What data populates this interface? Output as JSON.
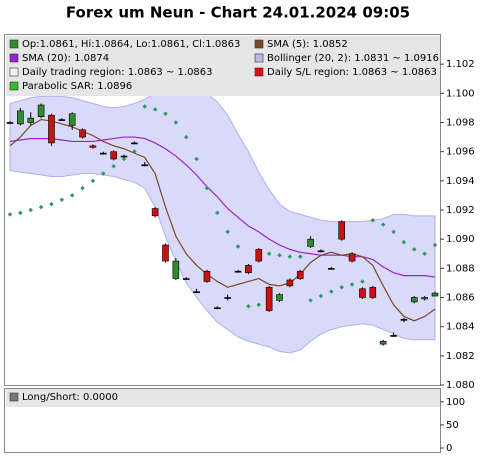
{
  "chart_data": [
    {
      "type": "candlestick",
      "title": "Forex um Neun - Chart 24.01.2024 09:05",
      "up_color": "#2e8b2e",
      "down_color": "#cc1111",
      "open": [
        1.098,
        1.0979,
        1.098,
        1.0984,
        1.0985,
        1.0982,
        1.0978,
        1.0975,
        1.0964,
        1.0959,
        1.096,
        1.0957,
        1.0966,
        1.0951,
        1.0921,
        1.0896,
        1.0873,
        1.0873,
        1.0864,
        1.0878,
        1.0853,
        1.086,
        1.0878,
        1.0882,
        1.0893,
        1.0867,
        1.0858,
        1.0872,
        1.0878,
        1.0895,
        1.0892,
        1.088,
        1.0912,
        1.089,
        1.0866,
        1.0867,
        1.0828,
        1.0834,
        1.0845,
        1.0857,
        1.0859,
        1.0861
      ],
      "high": [
        1.0981,
        1.099,
        1.0987,
        1.0993,
        1.0986,
        1.0983,
        1.0987,
        1.0976,
        1.0965,
        1.096,
        1.0961,
        1.0958,
        1.0967,
        1.0953,
        1.0922,
        1.0897,
        1.0887,
        1.0874,
        1.0866,
        1.0879,
        1.0854,
        1.0862,
        1.0879,
        1.0883,
        1.0894,
        1.0868,
        1.0863,
        1.0873,
        1.0879,
        1.0902,
        1.0893,
        1.0881,
        1.0913,
        1.0891,
        1.0867,
        1.0868,
        1.0831,
        1.0836,
        1.0846,
        1.0861,
        1.0861,
        1.0864
      ],
      "low": [
        1.0979,
        1.0978,
        1.0978,
        1.0983,
        1.0964,
        1.0981,
        1.0975,
        1.0969,
        1.0962,
        1.0958,
        1.0954,
        1.0956,
        1.0965,
        1.095,
        1.0915,
        1.0884,
        1.0872,
        1.0872,
        1.0863,
        1.087,
        1.0852,
        1.0858,
        1.0877,
        1.0876,
        1.0884,
        1.085,
        1.0857,
        1.0867,
        1.0872,
        1.0894,
        1.0891,
        1.0879,
        1.0899,
        1.0884,
        1.0859,
        1.0859,
        1.0827,
        1.0833,
        1.0843,
        1.0856,
        1.0858,
        1.0861
      ],
      "close": [
        1.098,
        1.0988,
        1.0983,
        1.0992,
        1.0966,
        1.0982,
        1.0986,
        1.097,
        1.0963,
        1.0959,
        1.0955,
        1.0957,
        1.0966,
        1.0951,
        1.0916,
        1.0885,
        1.0885,
        1.0873,
        1.0864,
        1.0871,
        1.0853,
        1.086,
        1.0878,
        1.0877,
        1.0885,
        1.0851,
        1.0862,
        1.0868,
        1.0873,
        1.09,
        1.0892,
        1.088,
        1.09,
        1.0885,
        1.086,
        1.086,
        1.083,
        1.0834,
        1.0845,
        1.086,
        1.086,
        1.0863
      ],
      "band": {
        "color": "#cfcff7",
        "edge": "#b0b0ee",
        "upper": [
          1.0993,
          1.0995,
          1.0997,
          1.0998,
          1.0998,
          1.0998,
          1.0997,
          1.0995,
          1.0993,
          1.0991,
          1.099,
          1.0991,
          1.0993,
          1.0996,
          1.1,
          1.1003,
          1.1005,
          1.1004,
          1.1003,
          1.1,
          1.0994,
          1.0985,
          1.0972,
          1.096,
          1.0946,
          1.0934,
          1.0924,
          1.0919,
          1.0917,
          1.0915,
          1.0913,
          1.0912,
          1.0912,
          1.0912,
          1.0912,
          1.0913,
          1.0914,
          1.0917,
          1.0917,
          1.0916,
          1.0916,
          1.0916
        ],
        "lower": [
          1.0947,
          1.0946,
          1.0945,
          1.0944,
          1.0943,
          1.0943,
          1.0944,
          1.0945,
          1.0945,
          1.0944,
          1.0943,
          1.0941,
          1.0939,
          1.0935,
          1.0922,
          1.0902,
          1.0885,
          1.087,
          1.086,
          1.0851,
          1.0843,
          1.0838,
          1.0833,
          1.083,
          1.0828,
          1.0826,
          1.0823,
          1.0822,
          1.0824,
          1.083,
          1.0835,
          1.0838,
          1.084,
          1.0841,
          1.0842,
          1.0841,
          1.0838,
          1.0835,
          1.0832,
          1.0831,
          1.0831,
          1.0831
        ]
      },
      "series": [
        {
          "color": "#9a22d0",
          "values": [
            1.0967,
            1.0968,
            1.0969,
            1.0969,
            1.0969,
            1.0968,
            1.0967,
            1.0967,
            1.0967,
            1.0968,
            1.0969,
            1.097,
            1.097,
            1.0969,
            1.0966,
            1.0962,
            1.0957,
            1.0951,
            1.0944,
            1.0936,
            1.0929,
            1.0921,
            1.0915,
            1.0909,
            1.0905,
            1.09,
            1.0896,
            1.0893,
            1.0891,
            1.089,
            1.0889,
            1.0889,
            1.0889,
            1.0888,
            1.0888,
            1.0886,
            1.0881,
            1.0877,
            1.0875,
            1.0875,
            1.0875,
            1.0874
          ]
        },
        {
          "color": "#7a4a2a",
          "values": [
            1.0964,
            1.097,
            1.0978,
            1.0982,
            1.0981,
            1.0979,
            1.0977,
            1.0974,
            1.0971,
            1.0967,
            1.0964,
            1.0962,
            1.0959,
            1.0956,
            1.0945,
            1.0922,
            1.0902,
            1.089,
            1.0882,
            1.0876,
            1.0871,
            1.0867,
            1.0869,
            1.0871,
            1.0873,
            1.0869,
            1.0868,
            1.087,
            1.0876,
            1.0884,
            1.0889,
            1.0891,
            1.0889,
            1.089,
            1.0888,
            1.0882,
            1.0868,
            1.0855,
            1.0847,
            1.0844,
            1.0847,
            1.0852
          ]
        }
      ],
      "sar": {
        "color": "#2e9a5e",
        "values": [
          1.0917,
          1.0918,
          1.092,
          1.0922,
          1.0924,
          1.0927,
          1.093,
          1.0935,
          1.094,
          1.0945,
          1.095,
          1.0955,
          1.096,
          1.0991,
          1.0989,
          1.0986,
          1.098,
          1.097,
          1.0955,
          1.0935,
          1.0918,
          1.0905,
          1.0895,
          1.0854,
          1.0855,
          1.089,
          1.0889,
          1.0888,
          1.0888,
          1.0858,
          1.0861,
          1.0864,
          1.0867,
          1.0869,
          1.0871,
          1.0913,
          1.091,
          1.0905,
          1.0898,
          1.0893,
          1.089,
          1.0896
        ]
      },
      "legend": [
        {
          "text": "Op:1.0861, Hi:1.0864, Lo:1.0861, Cl:1.0863",
          "color": "#2e8b2e"
        },
        {
          "text": "SMA (5): 1.0852",
          "color": "#7a4a2a"
        },
        {
          "text": "SMA (20): 1.0874",
          "color": "#9a22d0"
        },
        {
          "text": "Bollinger (20, 2): 1.0831 ~ 1.0916",
          "color": "#b8b8f0"
        },
        {
          "text": "Daily trading region: 1.0863 ~ 1.0863",
          "color": "#fff0f0"
        },
        {
          "text": "Daily S/L region: 1.0863 ~ 1.0863",
          "color": "#dd1111"
        },
        {
          "text": "Parabolic SAR: 1.0896",
          "color": "#33bb33"
        }
      ],
      "ylim": [
        1.08,
        1.104
      ],
      "yticks": [
        {
          "value": 1.08,
          "label": "1.080"
        },
        {
          "value": 1.082,
          "label": "1.082"
        },
        {
          "value": 1.084,
          "label": "1.084"
        },
        {
          "value": 1.086,
          "label": "1.086"
        },
        {
          "value": 1.088,
          "label": "1.088"
        },
        {
          "value": 1.09,
          "label": "1.090"
        },
        {
          "value": 1.092,
          "label": "1.092"
        },
        {
          "value": 1.094,
          "label": "1.094"
        },
        {
          "value": 1.096,
          "label": "1.096"
        },
        {
          "value": 1.098,
          "label": "1.098"
        },
        {
          "value": 1.1,
          "label": "1.100"
        },
        {
          "value": 1.102,
          "label": "1.102"
        }
      ]
    },
    {
      "type": "panel",
      "legend": [
        {
          "text": "Long/Short: 0.0000",
          "color": "#777777"
        }
      ],
      "ylim": [
        0,
        130
      ],
      "yticks": [
        0,
        50,
        100
      ]
    }
  ]
}
